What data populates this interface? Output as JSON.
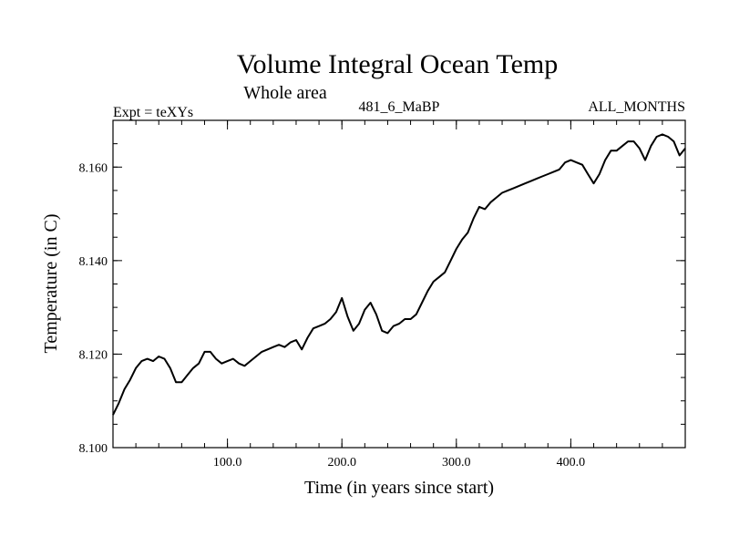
{
  "chart_data": {
    "type": "line",
    "title": "Volume Integral Ocean Temp",
    "subtitle": "Whole area",
    "header_left": "Expt = teXYs",
    "header_center": "481_6_MaBP",
    "header_right": "ALL_MONTHS",
    "xlabel": "Time (in years since start)",
    "ylabel": "Temperature (in C)",
    "xlim": [
      0,
      500
    ],
    "ylim": [
      8.1,
      8.17
    ],
    "x_ticks": [
      100,
      200,
      300,
      400
    ],
    "x_tick_labels": [
      "100.0",
      "200.0",
      "300.0",
      "400.0"
    ],
    "y_ticks": [
      8.1,
      8.12,
      8.14,
      8.16
    ],
    "y_tick_labels": [
      "8.100",
      "8.120",
      "8.140",
      "8.160"
    ],
    "x_minor_step": 20,
    "y_minor_step": 0.005,
    "grid": false,
    "line_color": "#000000",
    "series": [
      {
        "x": [
          0,
          5,
          10,
          15,
          20,
          25,
          30,
          35,
          40,
          45,
          50,
          55,
          60,
          65,
          70,
          75,
          80,
          85,
          90,
          95,
          100,
          105,
          110,
          115,
          120,
          125,
          130,
          135,
          140,
          145,
          150,
          155,
          160,
          165,
          170,
          175,
          180,
          185,
          190,
          195,
          200,
          205,
          210,
          215,
          220,
          225,
          230,
          235,
          240,
          245,
          250,
          255,
          260,
          265,
          270,
          275,
          280,
          285,
          290,
          295,
          300,
          305,
          310,
          315,
          320,
          325,
          330,
          335,
          340,
          345,
          350,
          355,
          360,
          365,
          370,
          375,
          380,
          385,
          390,
          395,
          400,
          405,
          410,
          415,
          420,
          425,
          430,
          435,
          440,
          445,
          450,
          455,
          460,
          465,
          470,
          475,
          480,
          485,
          490,
          495,
          500
        ],
        "values": [
          8.107,
          8.1095,
          8.1125,
          8.1145,
          8.117,
          8.1185,
          8.119,
          8.1185,
          8.1195,
          8.119,
          8.117,
          8.114,
          8.114,
          8.1155,
          8.117,
          8.118,
          8.1205,
          8.1205,
          8.119,
          8.118,
          8.1185,
          8.119,
          8.118,
          8.1175,
          8.1185,
          8.1195,
          8.1205,
          8.121,
          8.1215,
          8.122,
          8.1215,
          8.1225,
          8.123,
          8.121,
          8.1235,
          8.1255,
          8.126,
          8.1265,
          8.1275,
          8.129,
          8.132,
          8.128,
          8.125,
          8.1265,
          8.1295,
          8.131,
          8.1285,
          8.125,
          8.1245,
          8.126,
          8.1265,
          8.1275,
          8.1275,
          8.1285,
          8.131,
          8.1335,
          8.1355,
          8.1365,
          8.1375,
          8.14,
          8.1425,
          8.1445,
          8.146,
          8.149,
          8.1515,
          8.151,
          8.1525,
          8.1535,
          8.1545,
          8.155,
          8.1555,
          8.156,
          8.1565,
          8.157,
          8.1575,
          8.158,
          8.1585,
          8.159,
          8.1595,
          8.161,
          8.1615,
          8.161,
          8.1605,
          8.1585,
          8.1565,
          8.1585,
          8.1615,
          8.1635,
          8.1635,
          8.1645,
          8.1655,
          8.1655,
          8.164,
          8.1615,
          8.1645,
          8.1665,
          8.167,
          8.1665,
          8.1655,
          8.1625,
          8.164
        ]
      }
    ]
  }
}
